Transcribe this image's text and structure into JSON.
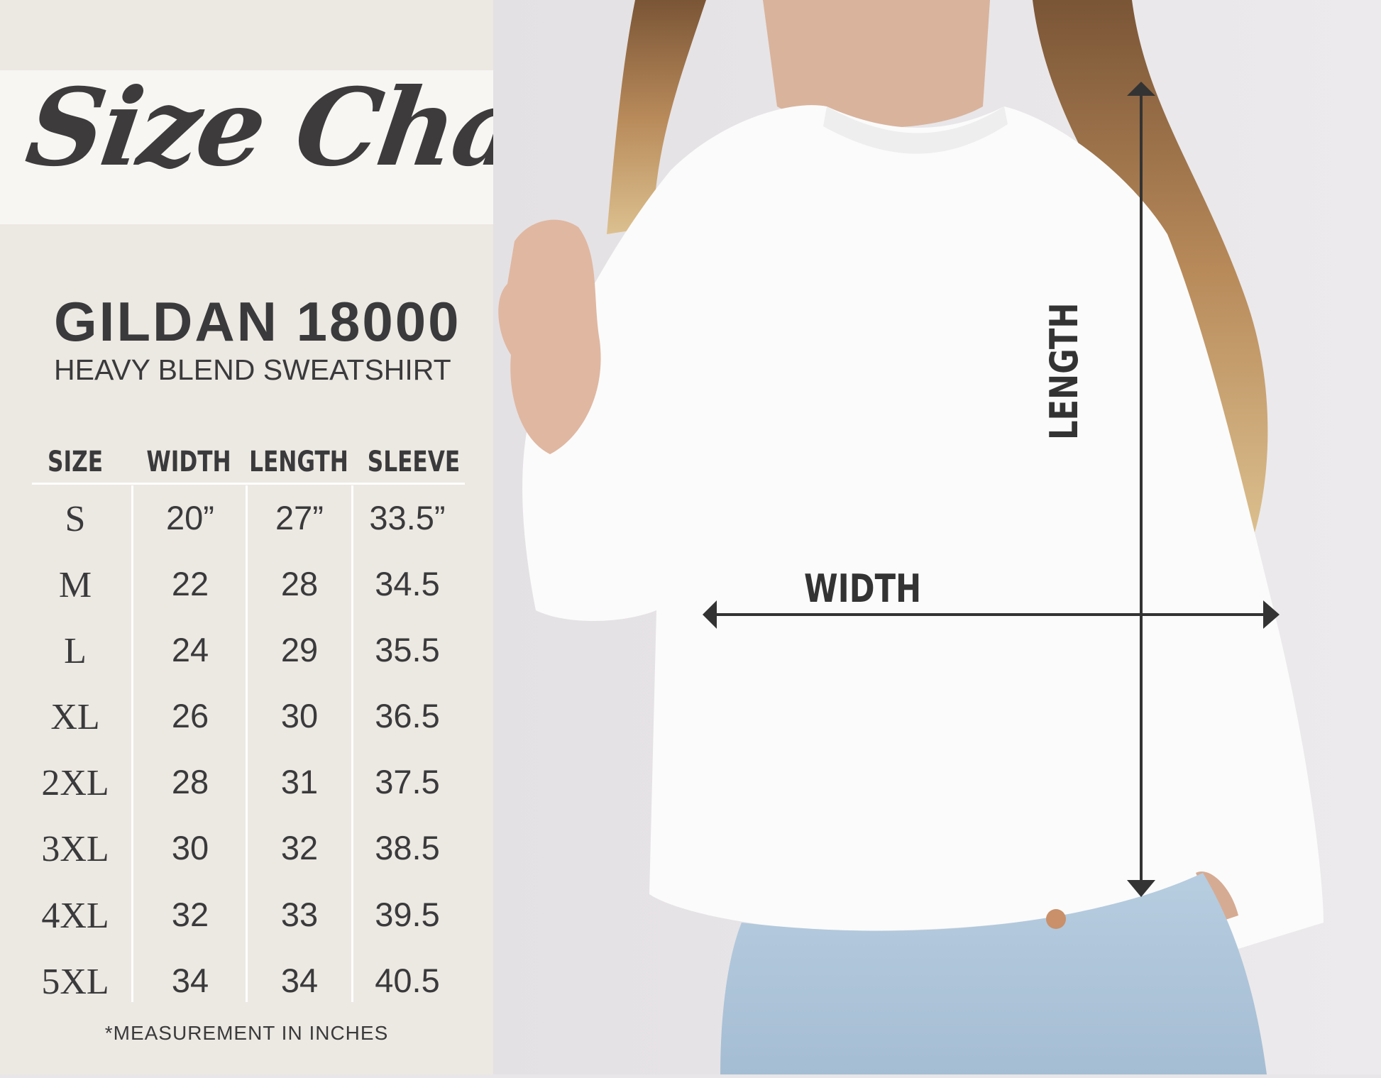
{
  "title": "Size Chart",
  "brand": "GILDAN 18000",
  "subtitle": "HEAVY BLEND SWEATSHIRT",
  "table": {
    "headers": [
      "SIZE",
      "WIDTH",
      "LENGTH",
      "SLEEVE"
    ],
    "rows": [
      [
        "S",
        "20”",
        "27”",
        "33.5”"
      ],
      [
        "M",
        "22",
        "28",
        "34.5"
      ],
      [
        "L",
        "24",
        "29",
        "35.5"
      ],
      [
        "XL",
        "26",
        "30",
        "36.5"
      ],
      [
        "2XL",
        "28",
        "31",
        "37.5"
      ],
      [
        "3XL",
        "30",
        "32",
        "38.5"
      ],
      [
        "4XL",
        "32",
        "33",
        "39.5"
      ],
      [
        "5XL",
        "34",
        "34",
        "40.5"
      ]
    ]
  },
  "footnote": "*MEASUREMENT IN INCHES",
  "photo_labels": {
    "width": "WIDTH",
    "length": "LENGTH"
  },
  "colors": {
    "panel": "#ece8e2",
    "text": "#3a3a3c",
    "banner": "#f7f6f3",
    "arrow": "#333333"
  }
}
